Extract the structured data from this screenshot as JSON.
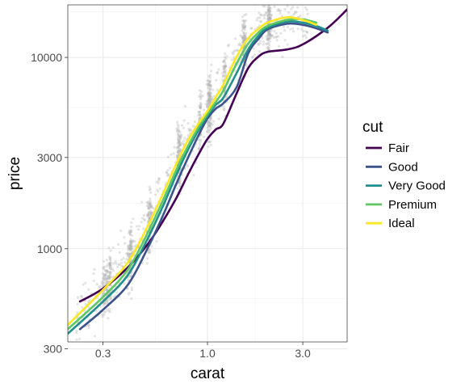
{
  "chart_data": {
    "type": "scatter",
    "title": "",
    "xlabel": "carat",
    "ylabel": "price",
    "x_scale": "log10",
    "y_scale": "log10",
    "xlim": [
      0.2,
      5.0
    ],
    "ylim": [
      326,
      18823
    ],
    "grid": true,
    "x_ticks": [
      {
        "value": 0.3,
        "label": "0.3"
      },
      {
        "value": 1.0,
        "label": "1.0"
      },
      {
        "value": 3.0,
        "label": "3.0"
      }
    ],
    "y_ticks": [
      {
        "value": 300,
        "label": "300"
      },
      {
        "value": 1000,
        "label": "1000"
      },
      {
        "value": 3000,
        "label": "3000"
      },
      {
        "value": 10000,
        "label": "10000"
      }
    ],
    "x_minor_gridlines": [
      0.1732,
      0.5477,
      1.7321,
      5.4772
    ],
    "y_minor_gridlines": [
      547.7,
      1732.1,
      5477.2,
      17320.5
    ],
    "legend": {
      "title": "cut",
      "position": "right"
    },
    "points_color": "#b3b3b3",
    "series": [
      {
        "name": "Fair",
        "color": "#440154",
        "x": [
          0.23,
          0.3,
          0.4,
          0.5,
          0.6,
          0.7,
          0.8,
          0.9,
          1.0,
          1.1,
          1.2,
          1.4,
          1.6,
          1.8,
          2.0,
          2.5,
          3.0,
          4.0,
          5.0
        ],
        "y": [
          530,
          620,
          800,
          1050,
          1400,
          1850,
          2450,
          3100,
          3750,
          4200,
          4500,
          6500,
          8800,
          10100,
          10700,
          11000,
          11700,
          14300,
          17800
        ]
      },
      {
        "name": "Good",
        "color": "#3b528b",
        "x": [
          0.23,
          0.3,
          0.4,
          0.5,
          0.6,
          0.7,
          0.8,
          0.9,
          1.0,
          1.1,
          1.2,
          1.4,
          1.6,
          1.8,
          2.0,
          2.5,
          3.0,
          3.5,
          4.0
        ],
        "y": [
          380,
          480,
          650,
          1000,
          1500,
          2200,
          3000,
          3900,
          4800,
          5400,
          5750,
          7000,
          10500,
          12500,
          14000,
          15000,
          14800,
          14200,
          13500
        ]
      },
      {
        "name": "Very Good",
        "color": "#21908c",
        "x": [
          0.2,
          0.3,
          0.4,
          0.5,
          0.6,
          0.7,
          0.8,
          0.9,
          1.0,
          1.1,
          1.2,
          1.4,
          1.6,
          1.8,
          2.0,
          2.5,
          3.0,
          3.5,
          4.0
        ],
        "y": [
          360,
          530,
          730,
          1120,
          1680,
          2450,
          3300,
          4150,
          4950,
          5650,
          6150,
          8300,
          11000,
          13000,
          14300,
          15400,
          15200,
          14600,
          13800
        ]
      },
      {
        "name": "Premium",
        "color": "#5dc863",
        "x": [
          0.2,
          0.3,
          0.4,
          0.5,
          0.6,
          0.7,
          0.8,
          0.9,
          1.0,
          1.1,
          1.2,
          1.4,
          1.6,
          1.8,
          2.0,
          2.5,
          3.0,
          3.5
        ],
        "y": [
          380,
          560,
          780,
          1200,
          1800,
          2600,
          3450,
          4300,
          5050,
          5850,
          6700,
          9300,
          11800,
          13500,
          14600,
          15700,
          15800,
          15200
        ]
      },
      {
        "name": "Ideal",
        "color": "#fde725",
        "x": [
          0.2,
          0.3,
          0.4,
          0.5,
          0.6,
          0.7,
          0.8,
          0.9,
          1.0,
          1.1,
          1.2,
          1.4,
          1.6,
          1.8,
          2.0,
          2.5,
          3.0,
          3.5
        ],
        "y": [
          400,
          610,
          850,
          1300,
          1950,
          2800,
          3700,
          4500,
          5250,
          6200,
          7200,
          10100,
          12600,
          14100,
          15200,
          16200,
          15700,
          14800
        ]
      }
    ]
  }
}
